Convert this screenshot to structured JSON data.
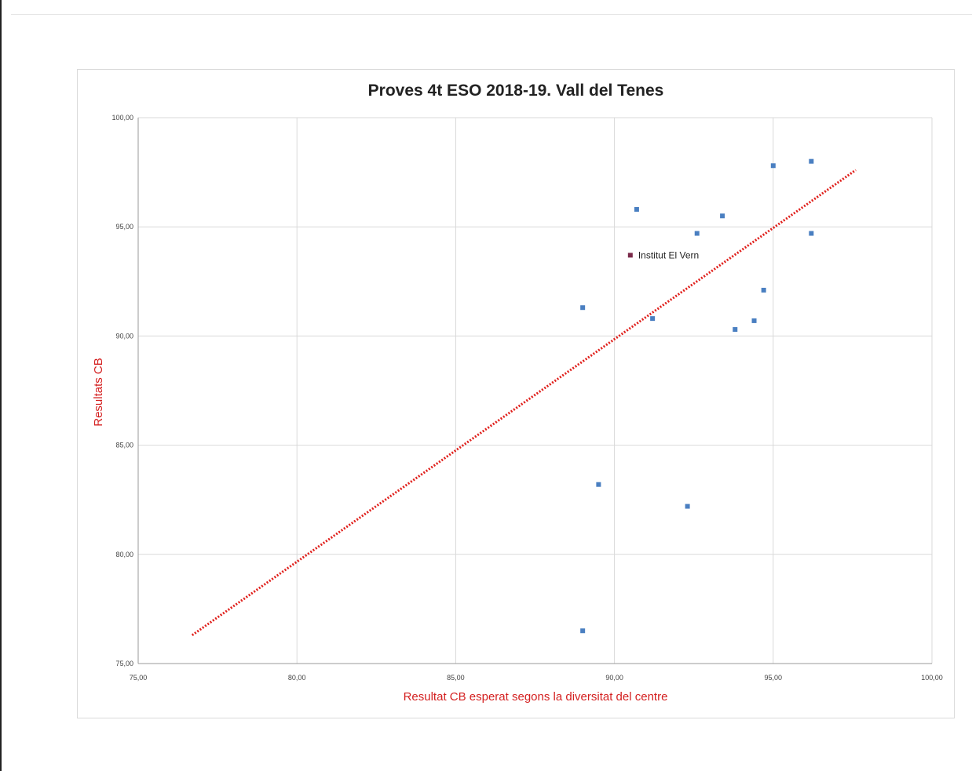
{
  "chart_data": {
    "type": "scatter",
    "title": "Proves 4t ESO 2018-19. Vall del Tenes",
    "xlabel": "Resultat CB esperat segons la diversitat del centre",
    "ylabel": "Resultats CB",
    "xlim": [
      75,
      100
    ],
    "ylim": [
      75,
      100
    ],
    "xticks": [
      "75,00",
      "80,00",
      "85,00",
      "90,00",
      "95,00",
      "100,00"
    ],
    "yticks": [
      "75,00",
      "80,00",
      "85,00",
      "90,00",
      "95,00",
      "100,00"
    ],
    "grid": true,
    "points": [
      {
        "x": 89.0,
        "y": 91.3
      },
      {
        "x": 89.5,
        "y": 83.2
      },
      {
        "x": 89.0,
        "y": 76.5
      },
      {
        "x": 90.7,
        "y": 95.8
      },
      {
        "x": 90.5,
        "y": 93.7,
        "label": "Institut El Vern"
      },
      {
        "x": 91.2,
        "y": 90.8
      },
      {
        "x": 92.3,
        "y": 82.2
      },
      {
        "x": 92.6,
        "y": 94.7
      },
      {
        "x": 93.4,
        "y": 95.5
      },
      {
        "x": 93.8,
        "y": 90.3
      },
      {
        "x": 94.4,
        "y": 90.7
      },
      {
        "x": 94.7,
        "y": 92.1
      },
      {
        "x": 95.0,
        "y": 97.8
      },
      {
        "x": 96.2,
        "y": 98.0
      },
      {
        "x": 96.2,
        "y": 94.7
      }
    ],
    "trendline": {
      "x": [
        76.7,
        97.6
      ],
      "y": [
        76.3,
        97.6
      ]
    },
    "colors": {
      "point": "#4a7fc1",
      "highlight_point": "#7a2a4a",
      "trendline": "#e0201c",
      "axis_label": "#d42020",
      "grid": "#d9d9d9"
    }
  }
}
